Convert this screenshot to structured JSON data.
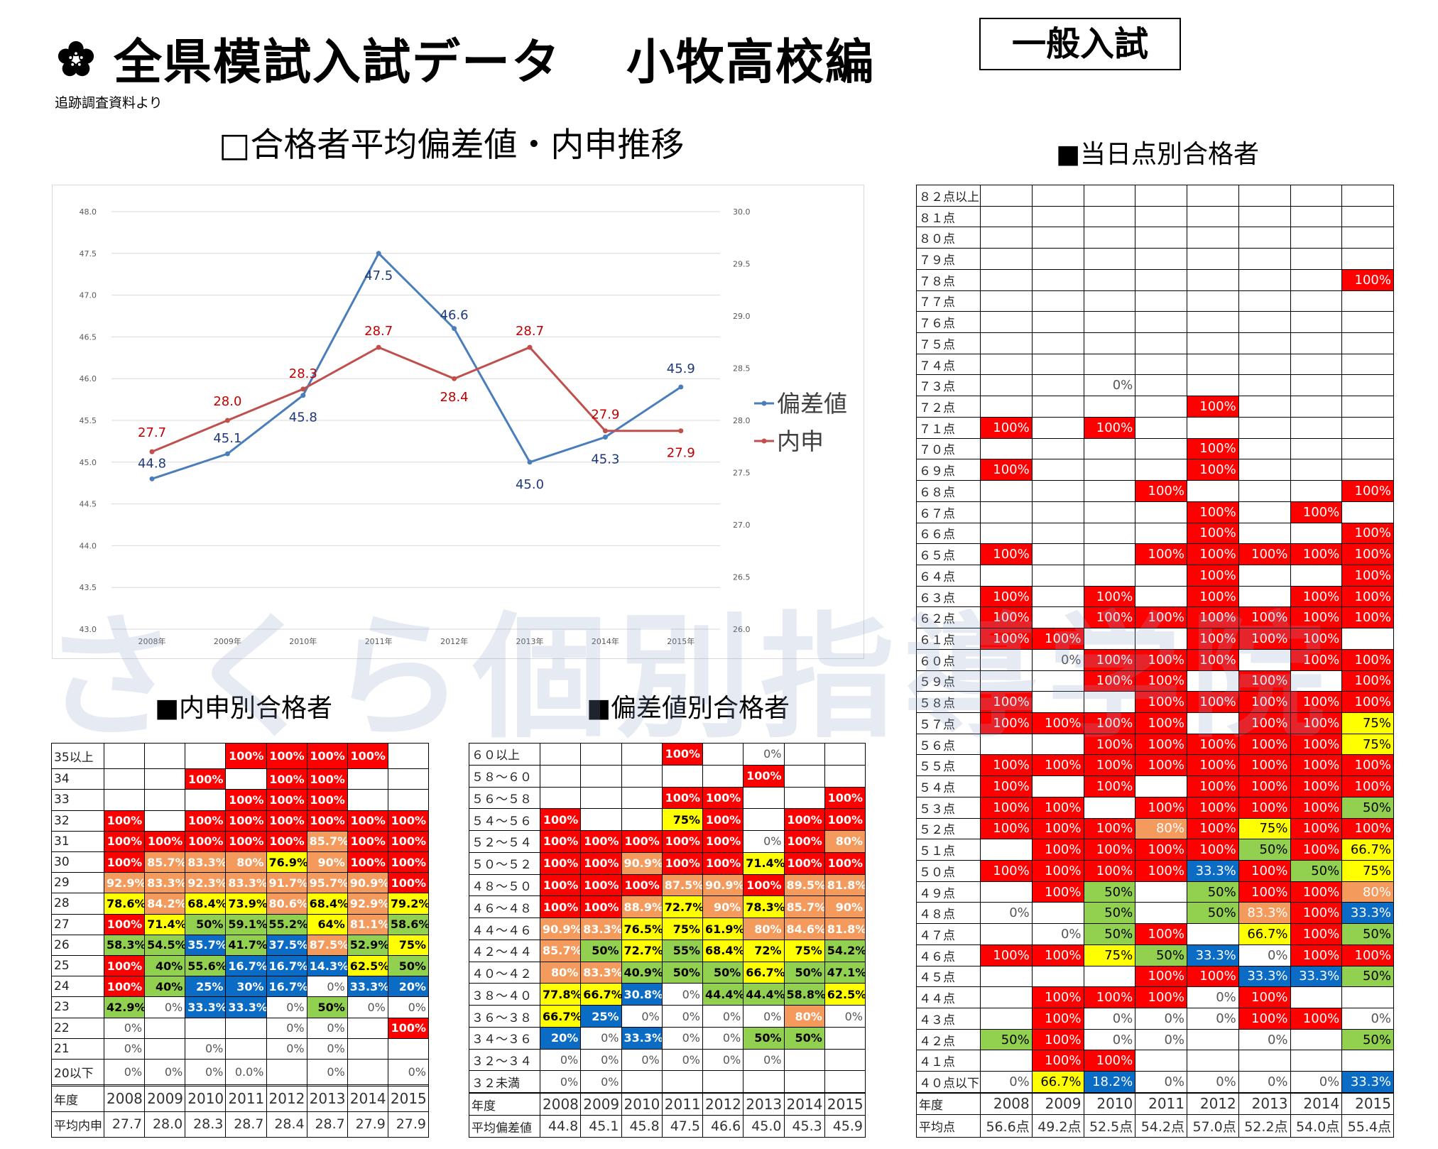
{
  "header": {
    "title": "全県模試入試データ",
    "school": "小牧高校編",
    "exam_type": "一般入試",
    "source_note": "追跡調査資料より",
    "logo_icon": "sakura-flower-icon"
  },
  "watermark": "さくら個別指導学院",
  "chart_heading": "□合格者平均偏差値・内申推移",
  "score_heading": "■当日点別合格者",
  "naishin_heading": "■内申別合格者",
  "hensachi_heading": "■偏差値別合格者",
  "colors": {
    "red": "#ff0000",
    "orange": "#f49a5c",
    "yellow": "#ffff00",
    "green": "#92d050",
    "blue": "#0a6cc4",
    "series_hensachi": "#4a7ebb",
    "series_naishin": "#c0504d"
  },
  "chart_data": {
    "type": "line",
    "title": "合格者平均偏差値・内申推移",
    "categories": [
      "2008年",
      "2009年",
      "2010年",
      "2011年",
      "2012年",
      "2013年",
      "2014年",
      "2015年"
    ],
    "series": [
      {
        "name": "偏差値",
        "axis": "left",
        "values": [
          44.8,
          45.1,
          45.8,
          47.5,
          46.6,
          45.0,
          45.3,
          45.9
        ],
        "labels": [
          "44.8",
          "45.1",
          "45.8",
          "47.5",
          "46.6",
          "45.0",
          "45.3",
          "45.9"
        ]
      },
      {
        "name": "内申",
        "axis": "right",
        "values": [
          27.7,
          28.0,
          28.3,
          28.7,
          28.4,
          28.7,
          27.9,
          27.9
        ],
        "labels": [
          "27.7",
          "28.0",
          "28.3",
          "28.7",
          "28.4",
          "28.7",
          "27.9",
          "27.9"
        ]
      }
    ],
    "left_axis": {
      "ylim": [
        43.0,
        48.0
      ],
      "ticks": [
        "48.0",
        "47.5",
        "47.0",
        "46.5",
        "46.0",
        "45.5",
        "45.0",
        "44.5",
        "44.0",
        "43.5",
        "43.0"
      ]
    },
    "right_axis": {
      "ylim": [
        26.0,
        30.0
      ],
      "ticks": [
        "30.0",
        "29.5",
        "29.0",
        "28.5",
        "28.0",
        "27.5",
        "27.0",
        "26.5",
        "26.0"
      ]
    },
    "grid": true,
    "legend": "right"
  },
  "naishin_table": {
    "rows": [
      {
        "label": "35以上",
        "cells": [
          "",
          "",
          "",
          "100%",
          "100%",
          "100%",
          "100%",
          ""
        ]
      },
      {
        "label": "34",
        "cells": [
          "",
          "",
          "100%",
          "",
          "100%",
          "100%",
          "",
          ""
        ]
      },
      {
        "label": "33",
        "cells": [
          "",
          "",
          "",
          "100%",
          "100%",
          "100%",
          "",
          ""
        ]
      },
      {
        "label": "32",
        "cells": [
          "100%",
          "",
          "100%",
          "100%",
          "100%",
          "100%",
          "100%",
          "100%"
        ]
      },
      {
        "label": "31",
        "cells": [
          "100%",
          "100%",
          "100%",
          "100%",
          "100%",
          "85.7%",
          "100%",
          "100%"
        ]
      },
      {
        "label": "30",
        "cells": [
          "100%",
          "85.7%",
          "83.3%",
          "80%",
          "76.9%",
          "90%",
          "100%",
          "100%"
        ]
      },
      {
        "label": "29",
        "cells": [
          "92.9%",
          "83.3%",
          "92.3%",
          "83.3%",
          "91.7%",
          "95.7%",
          "90.9%",
          "100%"
        ]
      },
      {
        "label": "28",
        "cells": [
          "78.6%",
          "84.2%",
          "68.4%",
          "73.9%",
          "80.6%",
          "68.4%",
          "92.9%",
          "79.2%"
        ]
      },
      {
        "label": "27",
        "cells": [
          "100%",
          "71.4%",
          "50%",
          "59.1%",
          "55.2%",
          "64%",
          "81.1%",
          "58.6%"
        ]
      },
      {
        "label": "26",
        "cells": [
          "58.3%",
          "54.5%",
          "35.7%",
          "41.7%",
          "37.5%",
          "87.5%",
          "52.9%",
          "75%"
        ]
      },
      {
        "label": "25",
        "cells": [
          "100%",
          "40%",
          "55.6%",
          "16.7%",
          "16.7%",
          "14.3%",
          "62.5%",
          "50%"
        ]
      },
      {
        "label": "24",
        "cells": [
          "100%",
          "40%",
          "25%",
          "30%",
          "16.7%",
          "0%",
          "33.3%",
          "20%"
        ]
      },
      {
        "label": "23",
        "cells": [
          "42.9%",
          "0%",
          "33.3%",
          "33.3%",
          "0%",
          "50%",
          "0%",
          "0%"
        ]
      },
      {
        "label": "22",
        "cells": [
          "0%",
          "",
          "",
          "",
          "0%",
          "0%",
          "",
          "100%"
        ]
      },
      {
        "label": "21",
        "cells": [
          "0%",
          "",
          "0%",
          "",
          "0%",
          "0%",
          "",
          ""
        ]
      },
      {
        "label": "20以下",
        "cells": [
          "0%",
          "0%",
          "0%",
          "0.0%",
          "",
          "0%",
          "",
          "0%"
        ]
      }
    ],
    "year_label": "年度",
    "years": [
      "2008",
      "2009",
      "2010",
      "2011",
      "2012",
      "2013",
      "2014",
      "2015"
    ],
    "avg_label": "平均内申",
    "averages": [
      "27.7",
      "28.0",
      "28.3",
      "28.7",
      "28.4",
      "28.7",
      "27.9",
      "27.9"
    ]
  },
  "hensachi_table": {
    "rows": [
      {
        "label": "６０以上",
        "cells": [
          "",
          "",
          "",
          "100%",
          "",
          "0%",
          "",
          ""
        ]
      },
      {
        "label": "５８～６０",
        "cells": [
          "",
          "",
          "",
          "",
          "",
          "100%",
          "",
          ""
        ]
      },
      {
        "label": "５６～５８",
        "cells": [
          "",
          "",
          "",
          "100%",
          "100%",
          "",
          "",
          "100%"
        ]
      },
      {
        "label": "５４～５６",
        "cells": [
          "100%",
          "",
          "",
          "75%",
          "100%",
          "",
          "100%",
          "100%"
        ]
      },
      {
        "label": "５２～５４",
        "cells": [
          "100%",
          "100%",
          "100%",
          "100%",
          "100%",
          "0%",
          "100%",
          "80%"
        ]
      },
      {
        "label": "５０～５２",
        "cells": [
          "100%",
          "100%",
          "90.9%",
          "100%",
          "100%",
          "71.4%",
          "100%",
          "100%"
        ]
      },
      {
        "label": "４８～５０",
        "cells": [
          "100%",
          "100%",
          "100%",
          "87.5%",
          "90.9%",
          "100%",
          "89.5%",
          "81.8%"
        ]
      },
      {
        "label": "４６～４８",
        "cells": [
          "100%",
          "100%",
          "88.9%",
          "72.7%",
          "90%",
          "78.3%",
          "85.7%",
          "90%"
        ]
      },
      {
        "label": "４４～４６",
        "cells": [
          "90.9%",
          "83.3%",
          "76.5%",
          "75%",
          "61.9%",
          "80%",
          "84.6%",
          "81.8%"
        ]
      },
      {
        "label": "４２～４４",
        "cells": [
          "85.7%",
          "50%",
          "72.7%",
          "55%",
          "68.4%",
          "72%",
          "75%",
          "54.2%"
        ]
      },
      {
        "label": "４０～４２",
        "cells": [
          "80%",
          "83.3%",
          "40.9%",
          "50%",
          "50%",
          "66.7%",
          "50%",
          "47.1%"
        ]
      },
      {
        "label": "３８～４０",
        "cells": [
          "77.8%",
          "66.7%",
          "30.8%",
          "0%",
          "44.4%",
          "44.4%",
          "58.8%",
          "62.5%"
        ]
      },
      {
        "label": "３６～３８",
        "cells": [
          "66.7%",
          "25%",
          "0%",
          "0%",
          "0%",
          "0%",
          "80%",
          "0%"
        ]
      },
      {
        "label": "３４～３６",
        "cells": [
          "20%",
          "0%",
          "33.3%",
          "0%",
          "0%",
          "50%",
          "50%",
          ""
        ]
      },
      {
        "label": "３２～３４",
        "cells": [
          "0%",
          "0%",
          "0%",
          "0%",
          "0%",
          "0%",
          "",
          ""
        ]
      },
      {
        "label": "３２未満",
        "cells": [
          "0%",
          "0%",
          "",
          "",
          "",
          "",
          "",
          ""
        ]
      }
    ],
    "year_label": "年度",
    "years": [
      "2008",
      "2009",
      "2010",
      "2011",
      "2012",
      "2013",
      "2014",
      "2015"
    ],
    "avg_label": "平均偏差値",
    "averages": [
      "44.8",
      "45.1",
      "45.8",
      "47.5",
      "46.6",
      "45.0",
      "45.3",
      "45.9"
    ]
  },
  "score_table": {
    "rows": [
      {
        "label": "８２点以上",
        "cells": [
          "",
          "",
          "",
          "",
          "",
          "",
          "",
          ""
        ]
      },
      {
        "label": "８１点",
        "cells": [
          "",
          "",
          "",
          "",
          "",
          "",
          "",
          ""
        ]
      },
      {
        "label": "８０点",
        "cells": [
          "",
          "",
          "",
          "",
          "",
          "",
          "",
          ""
        ]
      },
      {
        "label": "７９点",
        "cells": [
          "",
          "",
          "",
          "",
          "",
          "",
          "",
          ""
        ]
      },
      {
        "label": "７８点",
        "cells": [
          "",
          "",
          "",
          "",
          "",
          "",
          "",
          "100%"
        ]
      },
      {
        "label": "７７点",
        "cells": [
          "",
          "",
          "",
          "",
          "",
          "",
          "",
          ""
        ]
      },
      {
        "label": "７６点",
        "cells": [
          "",
          "",
          "",
          "",
          "",
          "",
          "",
          ""
        ]
      },
      {
        "label": "７５点",
        "cells": [
          "",
          "",
          "",
          "",
          "",
          "",
          "",
          ""
        ]
      },
      {
        "label": "７４点",
        "cells": [
          "",
          "",
          "",
          "",
          "",
          "",
          "",
          ""
        ]
      },
      {
        "label": "７３点",
        "cells": [
          "",
          "",
          "0%",
          "",
          "",
          "",
          "",
          ""
        ]
      },
      {
        "label": "７２点",
        "cells": [
          "",
          "",
          "",
          "",
          "100%",
          "",
          "",
          ""
        ]
      },
      {
        "label": "７１点",
        "cells": [
          "100%",
          "",
          "100%",
          "",
          "",
          "",
          "",
          ""
        ]
      },
      {
        "label": "７０点",
        "cells": [
          "",
          "",
          "",
          "",
          "100%",
          "",
          "",
          ""
        ]
      },
      {
        "label": "６９点",
        "cells": [
          "100%",
          "",
          "",
          "",
          "100%",
          "",
          "",
          ""
        ]
      },
      {
        "label": "６８点",
        "cells": [
          "",
          "",
          "",
          "100%",
          "",
          "",
          "",
          "100%"
        ]
      },
      {
        "label": "６７点",
        "cells": [
          "",
          "",
          "",
          "",
          "100%",
          "",
          "100%",
          ""
        ]
      },
      {
        "label": "６６点",
        "cells": [
          "",
          "",
          "",
          "",
          "100%",
          "",
          "",
          "100%"
        ]
      },
      {
        "label": "６５点",
        "cells": [
          "100%",
          "",
          "",
          "100%",
          "100%",
          "100%",
          "100%",
          "100%"
        ]
      },
      {
        "label": "６４点",
        "cells": [
          "",
          "",
          "",
          "",
          "100%",
          "",
          "",
          "100%"
        ]
      },
      {
        "label": "６３点",
        "cells": [
          "100%",
          "",
          "100%",
          "",
          "100%",
          "",
          "100%",
          "100%"
        ]
      },
      {
        "label": "６２点",
        "cells": [
          "100%",
          "",
          "100%",
          "100%",
          "100%",
          "100%",
          "100%",
          "100%"
        ]
      },
      {
        "label": "６１点",
        "cells": [
          "100%",
          "100%",
          "",
          "",
          "100%",
          "100%",
          "100%",
          ""
        ]
      },
      {
        "label": "６０点",
        "cells": [
          "",
          "0%",
          "100%",
          "100%",
          "100%",
          "",
          "100%",
          "100%"
        ]
      },
      {
        "label": "５９点",
        "cells": [
          "",
          "",
          "100%",
          "100%",
          "",
          "100%",
          "",
          "100%"
        ]
      },
      {
        "label": "５８点",
        "cells": [
          "100%",
          "",
          "",
          "100%",
          "100%",
          "100%",
          "100%",
          "100%"
        ]
      },
      {
        "label": "５７点",
        "cells": [
          "100%",
          "100%",
          "100%",
          "100%",
          "",
          "100%",
          "100%",
          "75%"
        ]
      },
      {
        "label": "５６点",
        "cells": [
          "",
          "",
          "100%",
          "100%",
          "100%",
          "100%",
          "100%",
          "75%"
        ]
      },
      {
        "label": "５５点",
        "cells": [
          "100%",
          "100%",
          "100%",
          "100%",
          "100%",
          "100%",
          "100%",
          "100%"
        ]
      },
      {
        "label": "５４点",
        "cells": [
          "100%",
          "",
          "100%",
          "",
          "100%",
          "100%",
          "100%",
          "100%"
        ]
      },
      {
        "label": "５３点",
        "cells": [
          "100%",
          "100%",
          "",
          "100%",
          "100%",
          "100%",
          "100%",
          "50%"
        ]
      },
      {
        "label": "５２点",
        "cells": [
          "100%",
          "100%",
          "100%",
          "80%",
          "100%",
          "75%",
          "100%",
          "100%"
        ]
      },
      {
        "label": "５１点",
        "cells": [
          "",
          "100%",
          "100%",
          "100%",
          "100%",
          "50%",
          "100%",
          "66.7%"
        ]
      },
      {
        "label": "５０点",
        "cells": [
          "100%",
          "100%",
          "100%",
          "100%",
          "33.3%",
          "100%",
          "50%",
          "75%"
        ]
      },
      {
        "label": "４９点",
        "cells": [
          "",
          "100%",
          "50%",
          "",
          "50%",
          "100%",
          "100%",
          "80%"
        ]
      },
      {
        "label": "４８点",
        "cells": [
          "0%",
          "",
          "50%",
          "",
          "50%",
          "83.3%",
          "100%",
          "33.3%"
        ]
      },
      {
        "label": "４７点",
        "cells": [
          "",
          "0%",
          "50%",
          "100%",
          "",
          "66.7%",
          "100%",
          "50%"
        ]
      },
      {
        "label": "４６点",
        "cells": [
          "100%",
          "100%",
          "75%",
          "50%",
          "33.3%",
          "0%",
          "100%",
          "100%"
        ]
      },
      {
        "label": "４５点",
        "cells": [
          "",
          "",
          "",
          "100%",
          "100%",
          "33.3%",
          "33.3%",
          "50%"
        ]
      },
      {
        "label": "４４点",
        "cells": [
          "",
          "100%",
          "100%",
          "100%",
          "0%",
          "100%",
          "",
          ""
        ]
      },
      {
        "label": "４３点",
        "cells": [
          "",
          "100%",
          "0%",
          "0%",
          "0%",
          "100%",
          "100%",
          "0%"
        ]
      },
      {
        "label": "４２点",
        "cells": [
          "50%",
          "100%",
          "0%",
          "0%",
          "",
          "0%",
          "",
          "50%"
        ]
      },
      {
        "label": "４１点",
        "cells": [
          "",
          "100%",
          "100%",
          "",
          "",
          "",
          "",
          ""
        ]
      },
      {
        "label": "４０点以下",
        "cells": [
          "0%",
          "66.7%",
          "18.2%",
          "0%",
          "0%",
          "0%",
          "0%",
          "33.3%"
        ]
      }
    ],
    "year_label": "年度",
    "years": [
      "2008",
      "2009",
      "2010",
      "2011",
      "2012",
      "2013",
      "2014",
      "2015"
    ],
    "avg_label": "平均点",
    "averages": [
      "56.6点",
      "49.2点",
      "52.5点",
      "54.2点",
      "57.0点",
      "52.2点",
      "54.0点",
      "55.4点"
    ]
  }
}
